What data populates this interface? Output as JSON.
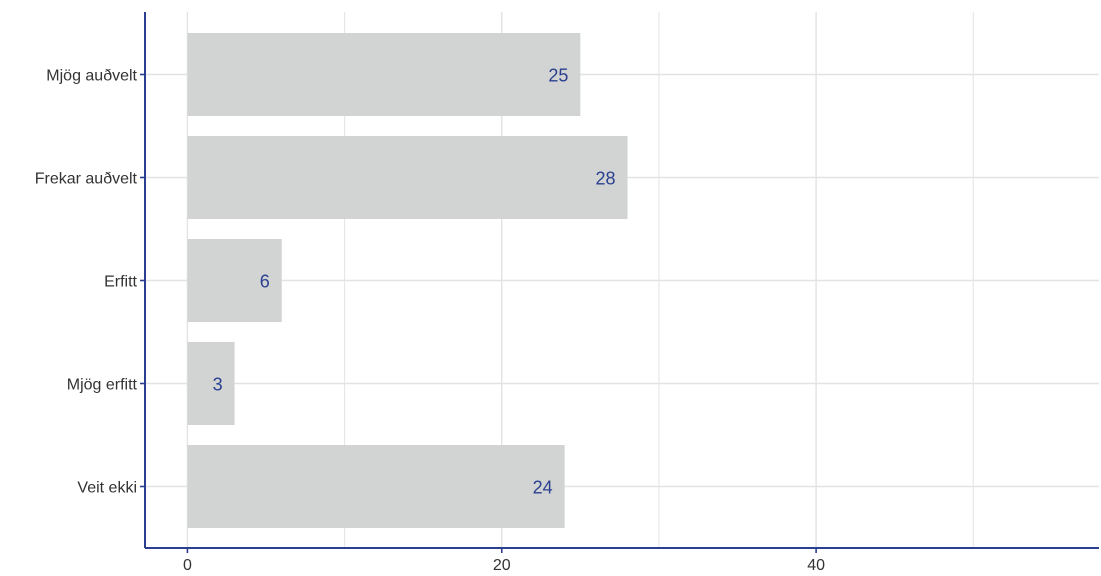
{
  "chart_data": {
    "type": "bar",
    "orientation": "horizontal",
    "categories": [
      "Mjög auðvelt",
      "Frekar auðvelt",
      "Erfitt",
      "Mjög erfitt",
      "Veit ekki"
    ],
    "values": [
      25,
      28,
      6,
      3,
      24
    ],
    "data_labels": [
      "25",
      "28",
      "6",
      "3",
      "24"
    ],
    "x_ticks": [
      "0",
      "20",
      "40"
    ],
    "xlim": [
      -2.7,
      58
    ],
    "title": "",
    "xlabel": "",
    "ylabel": "",
    "grid": true,
    "legend": "none",
    "colors": {
      "bar": "#d2d4d3",
      "axis": "#2a3f8f",
      "label": "#2a3f8f",
      "grid": "#e3e3e3",
      "tick_text": "#333333"
    }
  }
}
